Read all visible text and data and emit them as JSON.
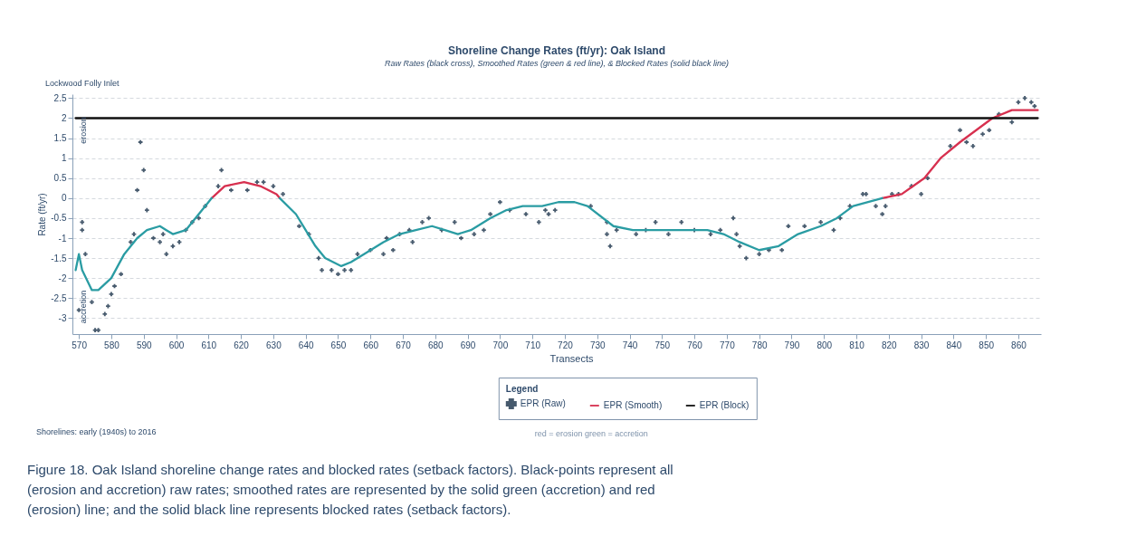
{
  "chart_data": {
    "type": "line",
    "title": "Shoreline Change Rates (ft/yr): Oak Island",
    "subtitle": "Raw Rates (black cross), Smoothed Rates (green & red line), & Blocked Rates (solid black line)",
    "xlabel": "Transects",
    "ylabel": "Rate (ft/yr)",
    "legend_title": "Legend",
    "xlim": [
      568,
      867
    ],
    "xticks": [
      570,
      580,
      590,
      600,
      610,
      620,
      630,
      640,
      650,
      660,
      670,
      680,
      690,
      700,
      710,
      720,
      730,
      740,
      750,
      760,
      770,
      780,
      790,
      800,
      810,
      820,
      830,
      840,
      850,
      860
    ],
    "ylim": [
      -3.4,
      2.6
    ],
    "yticks": [
      2.5,
      2,
      1.5,
      1,
      0.5,
      0,
      -0.5,
      -1,
      -1.5,
      -2,
      -2.5,
      -3
    ],
    "grid": "y",
    "legend": "bottom",
    "series": [
      {
        "name": "EPR (Raw)",
        "type": "scatter",
        "marker": "cross",
        "color": "#34495e",
        "x": [
          570,
          571,
          571,
          572,
          574,
          575,
          576,
          578,
          579,
          580,
          581,
          583,
          586,
          587,
          588,
          589,
          590,
          591,
          593,
          595,
          596,
          597,
          599,
          601,
          603,
          605,
          607,
          609,
          613,
          614,
          617,
          622,
          625,
          627,
          630,
          633,
          638,
          641,
          644,
          645,
          648,
          650,
          652,
          654,
          656,
          660,
          664,
          665,
          667,
          669,
          672,
          673,
          676,
          678,
          682,
          686,
          688,
          692,
          695,
          697,
          700,
          703,
          708,
          712,
          714,
          715,
          717,
          728,
          733,
          733,
          734,
          736,
          742,
          745,
          748,
          752,
          756,
          760,
          765,
          768,
          772,
          773,
          774,
          776,
          780,
          783,
          787,
          789,
          794,
          799,
          803,
          805,
          808,
          812,
          813,
          816,
          818,
          819,
          821,
          823,
          827,
          830,
          832,
          839,
          842,
          844,
          846,
          849,
          851,
          854,
          858,
          860,
          862,
          864,
          865
        ],
        "values": [
          -2.8,
          -0.8,
          -0.6,
          -1.4,
          -2.6,
          -3.3,
          -3.3,
          -2.9,
          -2.7,
          -2.4,
          -2.2,
          -1.9,
          -1.1,
          -0.9,
          0.2,
          1.4,
          0.7,
          -0.3,
          -1.0,
          -1.1,
          -0.9,
          -1.4,
          -1.2,
          -1.1,
          -0.8,
          -0.6,
          -0.5,
          -0.2,
          0.3,
          0.7,
          0.2,
          0.2,
          0.4,
          0.4,
          0.3,
          0.1,
          -0.7,
          -0.9,
          -1.5,
          -1.8,
          -1.8,
          -1.9,
          -1.8,
          -1.8,
          -1.4,
          -1.3,
          -1.4,
          -1.0,
          -1.3,
          -0.9,
          -0.8,
          -1.1,
          -0.6,
          -0.5,
          -0.8,
          -0.6,
          -1.0,
          -0.9,
          -0.8,
          -0.4,
          -0.1,
          -0.3,
          -0.4,
          -0.6,
          -0.3,
          -0.4,
          -0.3,
          -0.2,
          -0.6,
          -0.9,
          -1.2,
          -0.8,
          -0.9,
          -0.8,
          -0.6,
          -0.9,
          -0.6,
          -0.8,
          -0.9,
          -0.8,
          -0.5,
          -0.9,
          -1.2,
          -1.5,
          -1.4,
          -1.3,
          -1.3,
          -0.7,
          -0.7,
          -0.6,
          -0.8,
          -0.5,
          -0.2,
          0.1,
          0.1,
          -0.2,
          -0.4,
          -0.2,
          0.1,
          0.1,
          0.3,
          0.1,
          0.5,
          1.3,
          1.7,
          1.4,
          1.3,
          1.6,
          1.7,
          2.1,
          1.9,
          2.4,
          2.5,
          2.4,
          2.3
        ]
      },
      {
        "name": "EPR (Smooth)",
        "line_style": "solid",
        "color": "#d7304f",
        "x": [
          611,
          615,
          621,
          626,
          631,
          632,
          720,
          818,
          824,
          831,
          836,
          842,
          847,
          852,
          858,
          862,
          866
        ],
        "values": [
          0,
          0.3,
          0.4,
          0.3,
          0.1,
          0,
          null,
          0,
          0.1,
          0.5,
          1.0,
          1.4,
          1.7,
          2.0,
          2.2,
          2.2,
          2.2
        ]
      },
      {
        "line_style": "solid",
        "color": "#2a9ca3",
        "x": [
          569,
          570,
          571,
          574,
          576,
          580,
          584,
          588,
          591,
          595,
          597,
          599,
          603,
          607,
          610,
          611,
          621,
          632,
          637,
          640,
          643,
          646,
          651,
          654,
          658,
          664,
          669,
          674,
          679,
          683,
          687,
          691,
          697,
          702,
          707,
          713,
          718,
          723,
          727,
          735,
          741,
          748,
          756,
          764,
          769,
          774,
          780,
          786,
          792,
          799,
          804,
          809,
          818
        ],
        "values": [
          -1.8,
          -1.4,
          -1.8,
          -2.3,
          -2.3,
          -2.0,
          -1.4,
          -1.0,
          -0.8,
          -0.7,
          -0.8,
          -0.9,
          -0.8,
          -0.4,
          -0.1,
          0,
          null,
          0,
          -0.4,
          -0.8,
          -1.2,
          -1.5,
          -1.7,
          -1.6,
          -1.4,
          -1.1,
          -0.9,
          -0.8,
          -0.7,
          -0.8,
          -0.9,
          -0.8,
          -0.5,
          -0.3,
          -0.2,
          -0.2,
          -0.1,
          -0.1,
          -0.2,
          -0.7,
          -0.8,
          -0.8,
          -0.8,
          -0.8,
          -0.9,
          -1.1,
          -1.3,
          -1.2,
          -0.9,
          -0.7,
          -0.5,
          -0.2,
          0
        ]
      },
      {
        "name": "EPR (Block)",
        "line_style": "solid",
        "color": "#111111",
        "x": [
          569,
          866
        ],
        "values": [
          2,
          2
        ]
      }
    ],
    "annotations": [
      "Lockwood Folly Inlet",
      "erosion",
      "accretion",
      "red = erosion   green = accretion",
      "Shorelines: early (1940s) to 2016",
      "Figure 18. Oak Island shoreline change rates and blocked rates (setback factors). Black-points represent all (erosion and accretion) raw rates; smoothed rates are represented by the solid green (accretion) and red (erosion) line; and the solid black line represents blocked rates (setback factors)."
    ]
  }
}
